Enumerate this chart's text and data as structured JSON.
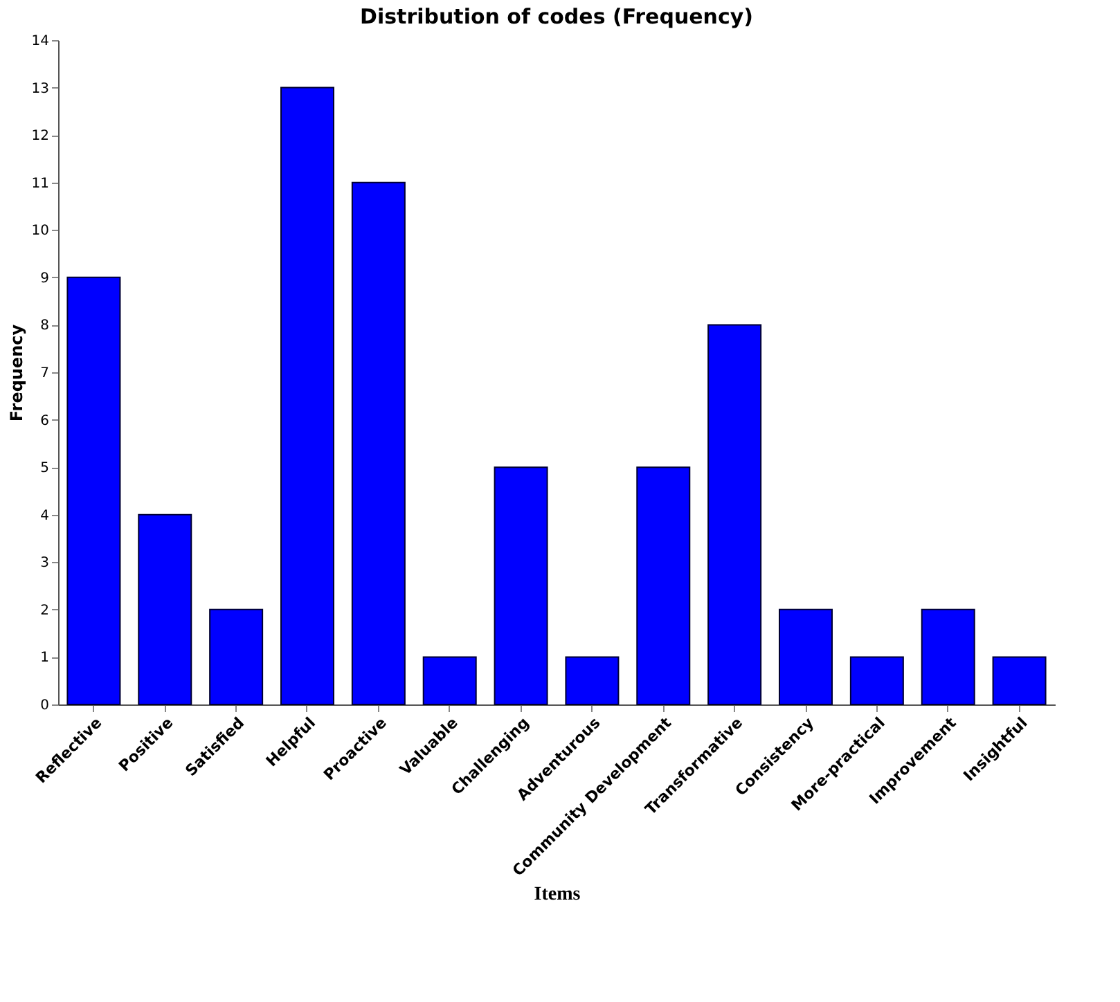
{
  "chart_data": {
    "type": "bar",
    "title": "Distribution of codes (Frequency)",
    "xlabel": "Items",
    "ylabel": "Frequency",
    "categories": [
      "Reflective",
      "Positive",
      "Satisfied",
      "Helpful",
      "Proactive",
      "Valuable",
      "Challenging",
      "Adventurous",
      "Community Development",
      "Transformative",
      "Consistency",
      "More-practical",
      "Improvement",
      "Insightful"
    ],
    "values": [
      9,
      4,
      2,
      13,
      11,
      1,
      5,
      1,
      5,
      8,
      2,
      1,
      2,
      1
    ],
    "color": "#0000ff",
    "ylim": [
      0,
      14
    ],
    "yticks": [
      0,
      1,
      2,
      3,
      4,
      5,
      6,
      7,
      8,
      9,
      10,
      11,
      12,
      13,
      14
    ],
    "grid": false
  }
}
